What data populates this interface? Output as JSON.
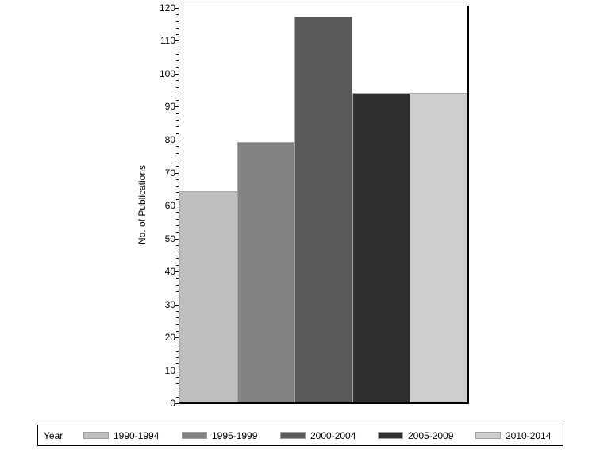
{
  "chart_data": {
    "type": "bar",
    "title": "",
    "xlabel": "",
    "ylabel": "No. of Publications",
    "ylim": [
      0,
      120
    ],
    "yticks": [
      0,
      10,
      20,
      30,
      40,
      50,
      60,
      70,
      80,
      90,
      100,
      110,
      120
    ],
    "categories": [
      "1990-1994",
      "1995-1999",
      "2000-2004",
      "2005-2009",
      "2010-2014"
    ],
    "values": [
      64,
      79,
      117,
      94,
      94
    ],
    "colors": [
      "#bebebe",
      "#828282",
      "#595959",
      "#303030",
      "#cecece"
    ],
    "legend": {
      "title": "Year",
      "position": "bottom",
      "entries": [
        "1990-1994",
        "1995-1999",
        "2000-2004",
        "2005-2009",
        "2010-2014"
      ]
    },
    "grid": false
  },
  "axis": {
    "ylabel": "No. of Publications",
    "ticks": [
      "0",
      "10",
      "20",
      "30",
      "40",
      "50",
      "60",
      "70",
      "80",
      "90",
      "100",
      "110",
      "120"
    ]
  },
  "legend": {
    "title": "Year",
    "items": [
      {
        "label": "1990-1994",
        "color": "#bebebe"
      },
      {
        "label": "1995-1999",
        "color": "#828282"
      },
      {
        "label": "2000-2004",
        "color": "#595959"
      },
      {
        "label": "2005-2009",
        "color": "#303030"
      },
      {
        "label": "2010-2014",
        "color": "#cecece"
      }
    ]
  }
}
